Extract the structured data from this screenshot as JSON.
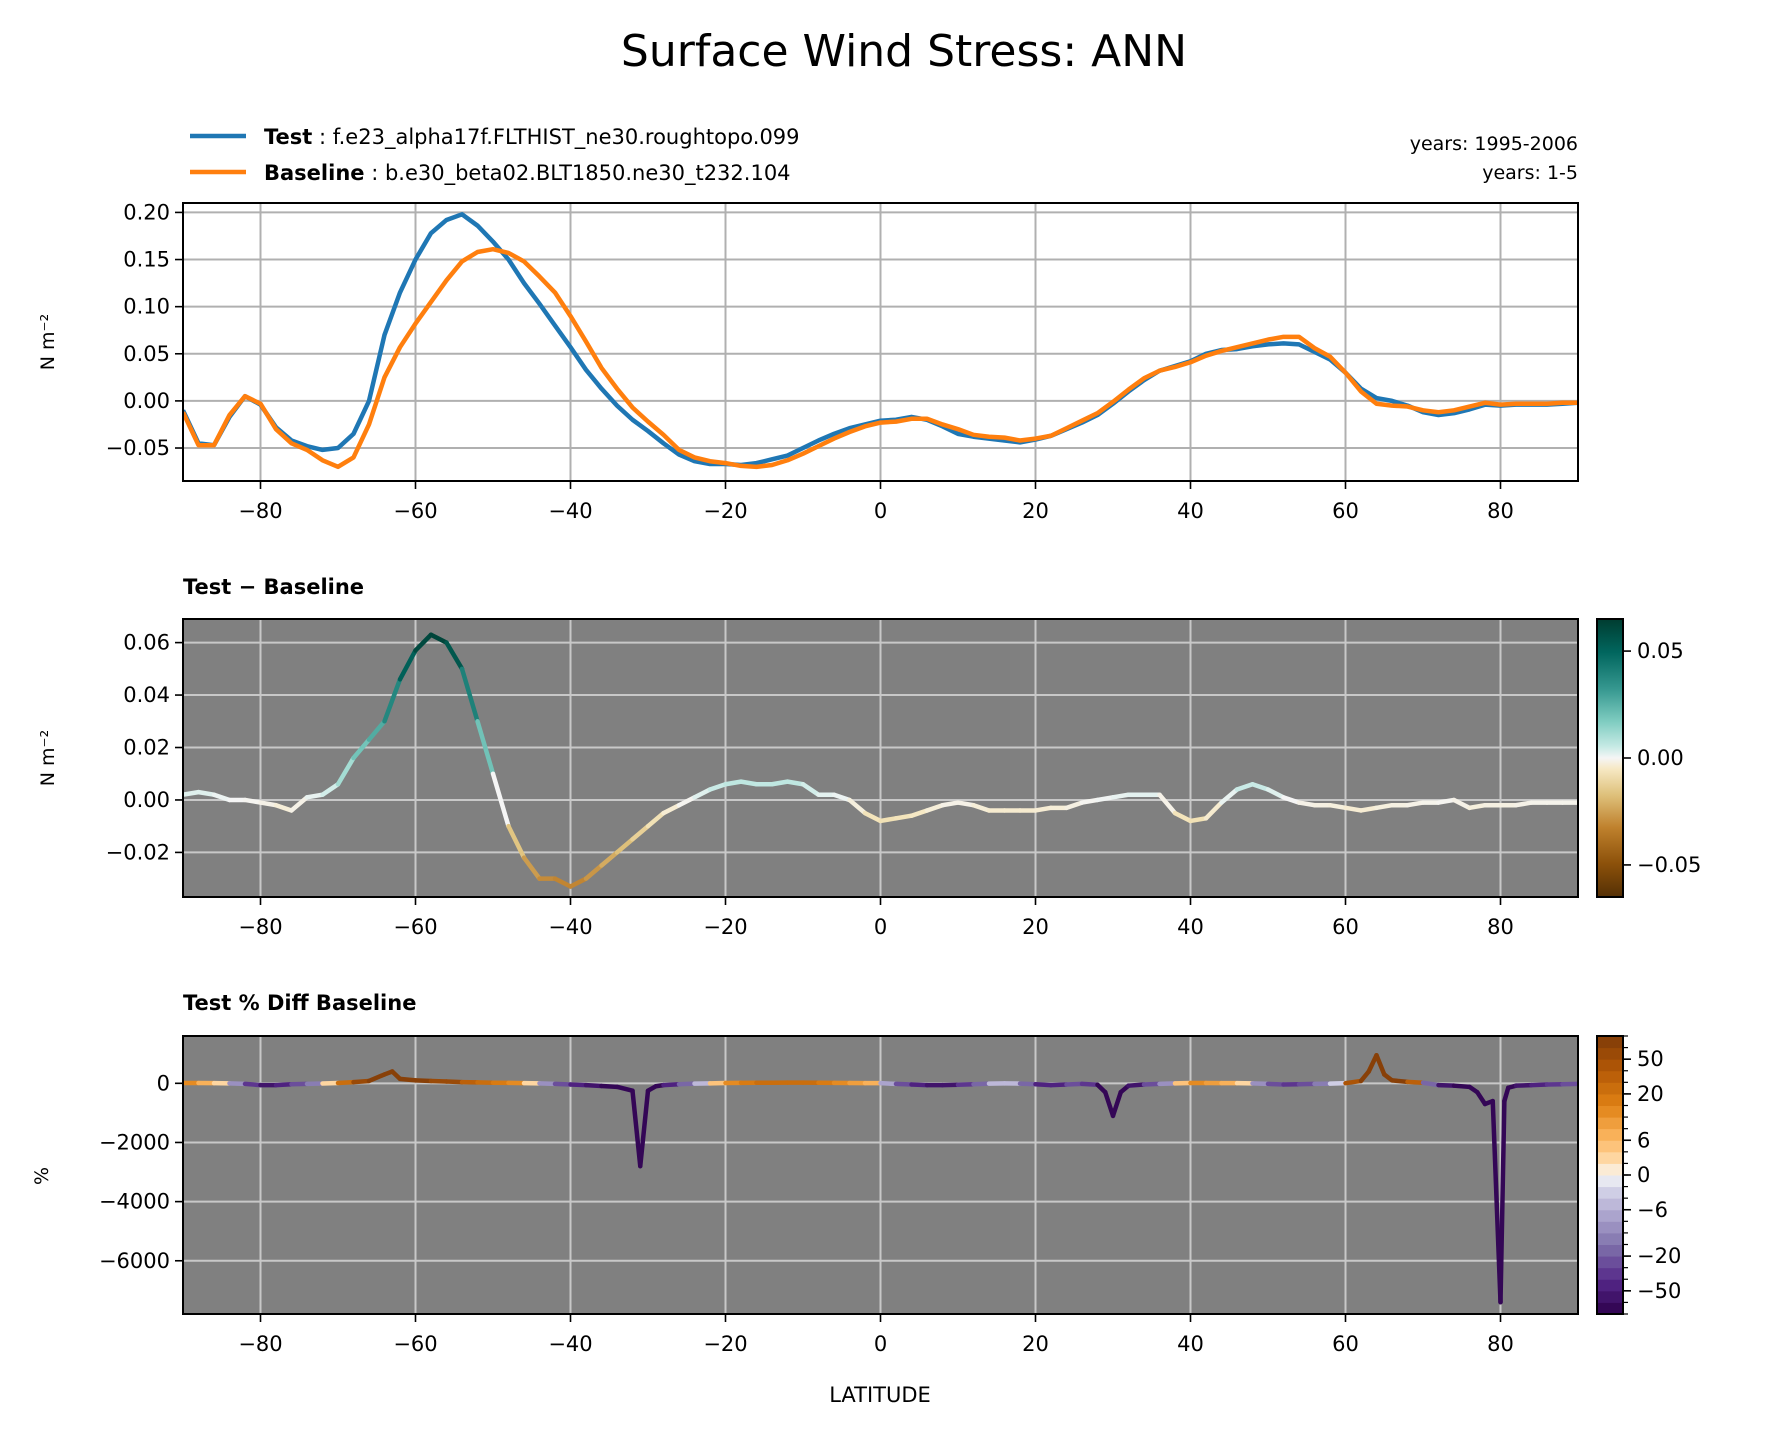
{
  "title": "Surface Wind Stress: ANN",
  "legend": {
    "test_label": "Test",
    "test_case": ": f.e23_alpha17f.FLTHIST_ne30.roughtopo.099",
    "baseline_label": "Baseline",
    "baseline_case": ": b.e30_beta02.BLT1850.ne30_t232.104",
    "test_years": "years: 1995-2006",
    "baseline_years": "years: 1-5"
  },
  "colors": {
    "test": "#1f77b4",
    "baseline": "#ff7f0e",
    "panel_bg": "#808080",
    "grid_light": "#b0b0b0",
    "grid_dark": "#c8c8c8"
  },
  "chart_data": [
    {
      "type": "line",
      "title": "",
      "xlabel": "",
      "ylabel": "N m⁻²",
      "xlim": [
        -90,
        90
      ],
      "ylim": [
        -0.085,
        0.21
      ],
      "xticks": [
        -80,
        -60,
        -40,
        -20,
        0,
        20,
        40,
        60,
        80
      ],
      "yticks": [
        -0.05,
        0.0,
        0.05,
        0.1,
        0.15,
        0.2
      ],
      "ytick_labels": [
        "−0.05",
        "0.00",
        "0.05",
        "0.10",
        "0.15",
        "0.20"
      ],
      "grid": true,
      "series": [
        {
          "name": "Test",
          "x": [
            -90,
            -88,
            -86,
            -84,
            -82,
            -80,
            -78,
            -76,
            -74,
            -72,
            -70,
            -68,
            -66,
            -64,
            -62,
            -60,
            -58,
            -56,
            -54,
            -52,
            -50,
            -48,
            -46,
            -44,
            -42,
            -40,
            -38,
            -36,
            -34,
            -32,
            -30,
            -28,
            -26,
            -24,
            -22,
            -20,
            -18,
            -16,
            -14,
            -12,
            -10,
            -8,
            -6,
            -4,
            -2,
            0,
            2,
            4,
            6,
            8,
            10,
            12,
            14,
            16,
            18,
            20,
            22,
            24,
            26,
            28,
            30,
            32,
            34,
            36,
            38,
            40,
            42,
            44,
            46,
            48,
            50,
            52,
            54,
            56,
            58,
            60,
            62,
            64,
            66,
            68,
            70,
            72,
            74,
            76,
            78,
            80,
            82,
            84,
            86,
            88,
            90
          ],
          "values": [
            -0.01,
            -0.045,
            -0.047,
            -0.017,
            0.005,
            -0.004,
            -0.028,
            -0.042,
            -0.048,
            -0.052,
            -0.05,
            -0.035,
            0.0,
            0.07,
            0.115,
            0.15,
            0.178,
            0.192,
            0.198,
            0.186,
            0.169,
            0.15,
            0.125,
            0.103,
            0.08,
            0.057,
            0.033,
            0.013,
            -0.005,
            -0.02,
            -0.032,
            -0.045,
            -0.057,
            -0.064,
            -0.067,
            -0.067,
            -0.068,
            -0.066,
            -0.062,
            -0.058,
            -0.05,
            -0.042,
            -0.035,
            -0.029,
            -0.025,
            -0.021,
            -0.02,
            -0.017,
            -0.02,
            -0.027,
            -0.035,
            -0.038,
            -0.04,
            -0.042,
            -0.044,
            -0.041,
            -0.037,
            -0.03,
            -0.023,
            -0.015,
            -0.003,
            0.01,
            0.022,
            0.032,
            0.037,
            0.042,
            0.05,
            0.054,
            0.055,
            0.058,
            0.06,
            0.061,
            0.06,
            0.052,
            0.044,
            0.03,
            0.013,
            0.003,
            0.0,
            -0.005,
            -0.012,
            -0.015,
            -0.013,
            -0.009,
            -0.004,
            -0.005,
            -0.004,
            -0.004,
            -0.004,
            -0.003,
            -0.002
          ]
        },
        {
          "name": "Baseline",
          "x": [
            -90,
            -88,
            -86,
            -84,
            -82,
            -80,
            -78,
            -76,
            -74,
            -72,
            -70,
            -68,
            -66,
            -64,
            -62,
            -60,
            -58,
            -56,
            -54,
            -52,
            -50,
            -48,
            -46,
            -44,
            -42,
            -40,
            -38,
            -36,
            -34,
            -32,
            -30,
            -28,
            -26,
            -24,
            -22,
            -20,
            -18,
            -16,
            -14,
            -12,
            -10,
            -8,
            -6,
            -4,
            -2,
            0,
            2,
            4,
            6,
            8,
            10,
            12,
            14,
            16,
            18,
            20,
            22,
            24,
            26,
            28,
            30,
            32,
            34,
            36,
            38,
            40,
            42,
            44,
            46,
            48,
            50,
            52,
            54,
            56,
            58,
            60,
            62,
            64,
            66,
            68,
            70,
            72,
            74,
            76,
            78,
            80,
            82,
            84,
            86,
            88,
            90
          ],
          "values": [
            -0.012,
            -0.047,
            -0.047,
            -0.015,
            0.005,
            -0.003,
            -0.03,
            -0.045,
            -0.052,
            -0.063,
            -0.07,
            -0.06,
            -0.025,
            0.025,
            0.057,
            0.082,
            0.105,
            0.128,
            0.148,
            0.158,
            0.161,
            0.157,
            0.148,
            0.132,
            0.115,
            0.09,
            0.063,
            0.035,
            0.013,
            -0.007,
            -0.022,
            -0.036,
            -0.052,
            -0.06,
            -0.064,
            -0.066,
            -0.069,
            -0.07,
            -0.068,
            -0.063,
            -0.056,
            -0.048,
            -0.04,
            -0.033,
            -0.027,
            -0.023,
            -0.022,
            -0.019,
            -0.019,
            -0.025,
            -0.03,
            -0.036,
            -0.038,
            -0.039,
            -0.042,
            -0.04,
            -0.037,
            -0.029,
            -0.021,
            -0.013,
            -0.001,
            0.012,
            0.024,
            0.032,
            0.036,
            0.041,
            0.048,
            0.053,
            0.057,
            0.061,
            0.065,
            0.068,
            0.068,
            0.056,
            0.047,
            0.03,
            0.01,
            -0.003,
            -0.005,
            -0.006,
            -0.01,
            -0.012,
            -0.01,
            -0.006,
            -0.002,
            -0.004,
            -0.003,
            -0.003,
            -0.003,
            -0.002,
            -0.002
          ]
        }
      ]
    },
    {
      "type": "line",
      "title": "Test − Baseline",
      "xlabel": "",
      "ylabel": "N m⁻²",
      "xlim": [
        -90,
        90
      ],
      "ylim": [
        -0.037,
        0.069
      ],
      "xticks": [
        -80,
        -60,
        -40,
        -20,
        0,
        20,
        40,
        60,
        80
      ],
      "yticks": [
        -0.02,
        0.0,
        0.02,
        0.04,
        0.06
      ],
      "ytick_labels": [
        "−0.02",
        "0.00",
        "0.02",
        "0.04",
        "0.06"
      ],
      "grid": true,
      "colorbar": {
        "vmin": -0.065,
        "vmax": 0.065,
        "ticks": [
          -0.05,
          0.0,
          0.05
        ],
        "tick_labels": [
          "−0.05",
          "0.00",
          "0.05"
        ]
      },
      "series": [
        {
          "name": "Test − Baseline",
          "x": [
            -90,
            -88,
            -86,
            -84,
            -82,
            -80,
            -78,
            -76,
            -74,
            -72,
            -70,
            -68,
            -66,
            -64,
            -62,
            -60,
            -58,
            -56,
            -54,
            -52,
            -50,
            -48,
            -46,
            -44,
            -42,
            -40,
            -38,
            -36,
            -34,
            -32,
            -30,
            -28,
            -26,
            -24,
            -22,
            -20,
            -18,
            -16,
            -14,
            -12,
            -10,
            -8,
            -6,
            -4,
            -2,
            0,
            2,
            4,
            6,
            8,
            10,
            12,
            14,
            16,
            18,
            20,
            22,
            24,
            26,
            28,
            30,
            32,
            34,
            36,
            38,
            40,
            42,
            44,
            46,
            48,
            50,
            52,
            54,
            56,
            58,
            60,
            62,
            64,
            66,
            68,
            70,
            72,
            74,
            76,
            78,
            80,
            82,
            84,
            86,
            88,
            90
          ],
          "values": [
            0.002,
            0.003,
            0.002,
            0.0,
            0.0,
            -0.001,
            -0.002,
            -0.004,
            0.001,
            0.002,
            0.006,
            0.016,
            0.023,
            0.03,
            0.046,
            0.057,
            0.063,
            0.06,
            0.05,
            0.03,
            0.01,
            -0.01,
            -0.022,
            -0.03,
            -0.03,
            -0.033,
            -0.03,
            -0.025,
            -0.02,
            -0.015,
            -0.01,
            -0.005,
            -0.002,
            0.001,
            0.004,
            0.006,
            0.007,
            0.006,
            0.006,
            0.007,
            0.006,
            0.002,
            0.002,
            0.0,
            -0.005,
            -0.008,
            -0.007,
            -0.006,
            -0.004,
            -0.002,
            -0.001,
            -0.002,
            -0.004,
            -0.004,
            -0.004,
            -0.004,
            -0.003,
            -0.003,
            -0.001,
            0.0,
            0.001,
            0.002,
            0.002,
            0.002,
            -0.005,
            -0.008,
            -0.007,
            -0.001,
            0.004,
            0.006,
            0.004,
            0.001,
            -0.001,
            -0.002,
            -0.002,
            -0.003,
            -0.004,
            -0.003,
            -0.002,
            -0.002,
            -0.001,
            -0.001,
            0.0,
            -0.003,
            -0.002,
            -0.002,
            -0.002,
            -0.001,
            -0.001,
            -0.001,
            -0.001
          ]
        }
      ]
    },
    {
      "type": "line",
      "title": "Test % Diff Baseline",
      "xlabel": "LATITUDE",
      "ylabel": "%",
      "xlim": [
        -90,
        90
      ],
      "ylim": [
        -7800,
        1600
      ],
      "xticks": [
        -80,
        -60,
        -40,
        -20,
        0,
        20,
        40,
        60,
        80
      ],
      "yticks": [
        -6000,
        -4000,
        -2000,
        0
      ],
      "ytick_labels": [
        "−6000",
        "−4000",
        "−2000",
        "0"
      ],
      "grid": true,
      "colorbar": {
        "levels": [
          -100,
          -75,
          -50,
          -40,
          -30,
          -20,
          -15,
          -10,
          -8,
          -6,
          -4,
          -2,
          0,
          2,
          4,
          6,
          8,
          10,
          15,
          20,
          30,
          40,
          50,
          75,
          100
        ],
        "ticks": [
          -50,
          -20,
          -6,
          0,
          6,
          20,
          50
        ],
        "tick_labels": [
          "−50",
          "−20",
          "−6",
          "0",
          "6",
          "20",
          "50"
        ]
      },
      "series": [
        {
          "name": "Test % Diff Baseline",
          "x": [
            -90,
            -88,
            -86,
            -84,
            -82,
            -80,
            -78,
            -76,
            -74,
            -72,
            -70,
            -68,
            -66,
            -64,
            -63,
            -62,
            -60,
            -58,
            -56,
            -54,
            -52,
            -50,
            -48,
            -46,
            -44,
            -42,
            -40,
            -38,
            -36,
            -34,
            -32,
            -31,
            -30,
            -29,
            -28,
            -26,
            -24,
            -22,
            -20,
            -18,
            -16,
            -14,
            -12,
            -10,
            -8,
            -6,
            -4,
            -2,
            0,
            2,
            4,
            6,
            8,
            10,
            12,
            14,
            16,
            18,
            20,
            22,
            24,
            26,
            28,
            29,
            30,
            31,
            32,
            34,
            36,
            38,
            40,
            42,
            44,
            46,
            48,
            50,
            52,
            54,
            56,
            58,
            60,
            62,
            63,
            64,
            65,
            66,
            68,
            70,
            72,
            74,
            76,
            77,
            78,
            79,
            80,
            80.5,
            81,
            82,
            84,
            86,
            88,
            90
          ],
          "values": [
            10,
            10,
            5,
            0,
            -20,
            -60,
            -60,
            -30,
            -20,
            -5,
            10,
            40,
            80,
            300,
            400,
            150,
            100,
            80,
            60,
            40,
            30,
            20,
            15,
            5,
            0,
            -20,
            -40,
            -60,
            -90,
            -120,
            -250,
            -2800,
            -250,
            -100,
            -60,
            -30,
            -10,
            0,
            10,
            15,
            20,
            20,
            25,
            25,
            20,
            15,
            10,
            8,
            5,
            -20,
            -40,
            -60,
            -60,
            -50,
            -30,
            -10,
            0,
            -10,
            -30,
            -60,
            -40,
            -20,
            -50,
            -300,
            -1100,
            -300,
            -80,
            -40,
            -20,
            0,
            10,
            10,
            8,
            5,
            0,
            -20,
            -40,
            -30,
            -20,
            -10,
            5,
            80,
            400,
            950,
            300,
            100,
            50,
            20,
            -60,
            -80,
            -120,
            -300,
            -700,
            -600,
            -7400,
            -600,
            -150,
            -80,
            -60,
            -40,
            -30,
            -20
          ]
        }
      ]
    }
  ]
}
